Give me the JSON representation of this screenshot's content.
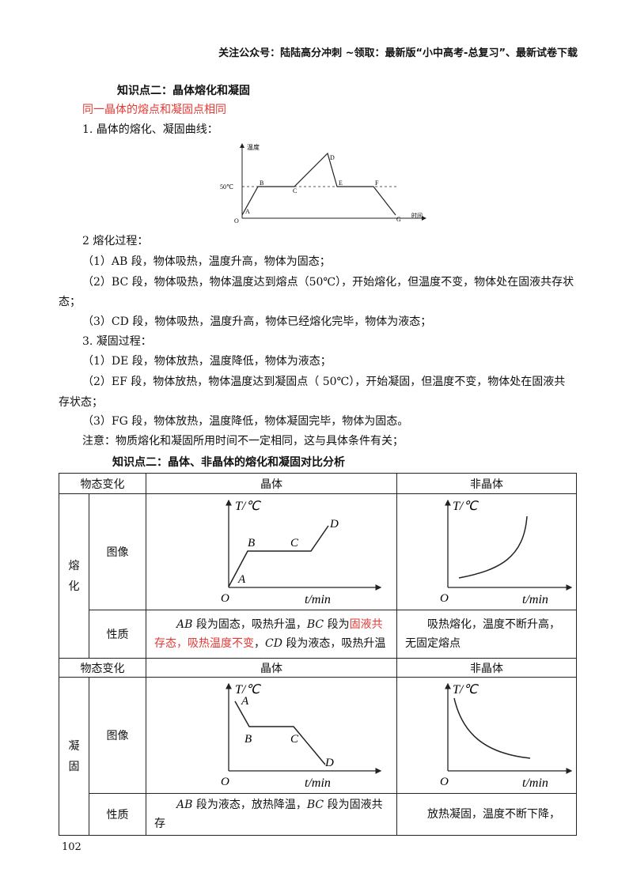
{
  "header": "关注公众号：陆陆高分冲刺 ~领取：最新版“小中高考-总复习”、最新试卷下载",
  "section1": {
    "title": "知识点二：晶体熔化和凝固",
    "highlight": "同一晶体的熔点和凝固点相同",
    "item1": "1. 晶体的熔化、凝固曲线：",
    "graph": {
      "ylabel": "温度",
      "xlabel": "时间",
      "temp_label": "50℃",
      "points": [
        "O",
        "A",
        "B",
        "C",
        "D",
        "E",
        "F",
        "G"
      ]
    },
    "item2": "2 熔化过程：",
    "melt": [
      "（1）AB 段，物体吸热，温度升高，物体为固态；",
      "（2）BC 段，物体吸热，物体温度达到熔点（50℃），开始熔化，但温度不变，物体处在固液共存状",
      "态；",
      "（3）CD 段，物体吸热，温度升高，物体已经熔化完毕，物体为液态；"
    ],
    "item3": "3. 凝固过程：",
    "freeze": [
      "（1）DE 段，物体放热，温度降低，物体为液态；",
      "（2）EF 段，物体放热，物体温度达到凝固点（ 50℃），开始凝固，但温度不变，物体处在固液共",
      "存状态；",
      "（3）FG 段，物体放热，温度降低，物体凝固完毕，物体为固态。"
    ],
    "note": "注意：物质熔化和凝固所用时间不一定相同，这与具体条件有关；"
  },
  "section2": {
    "title": "知识点二：晶体、非晶体的熔化和凝固对比分析"
  },
  "table": {
    "col_state": "物态变化",
    "col_crystal": "晶体",
    "col_noncrystal": "非晶体",
    "melt_label_1": "熔",
    "melt_label_2": "化",
    "freeze_label_1": "凝",
    "freeze_label_2": "固",
    "image_label": "图像",
    "prop_label": "性质",
    "axis_t": "T/℃",
    "axis_time": "t/min",
    "origin": "O",
    "melt_points": [
      "A",
      "B",
      "C",
      "D"
    ],
    "freeze_points": [
      "A",
      "B",
      "C",
      "D"
    ],
    "melt_crystal_prop": {
      "p1": "AB",
      "p2": " 段为固态，吸热升温，",
      "p3": "BC",
      "p4": " 段为",
      "p5": "固液共存态，吸热温度不变",
      "p6": "，",
      "p7": "CD",
      "p8": " 段为液态，吸热升温"
    },
    "melt_noncrystal_prop": [
      "吸热熔化，温度不断升高，",
      "无固定熔点"
    ],
    "freeze_crystal_prop": {
      "p1": "AB",
      "p2": " 段为液态，放热降温，",
      "p3": "BC",
      "p4": " 段为固液共存"
    },
    "freeze_noncrystal_prop": "放热凝固，温度不断下降，"
  },
  "page_number": "102"
}
